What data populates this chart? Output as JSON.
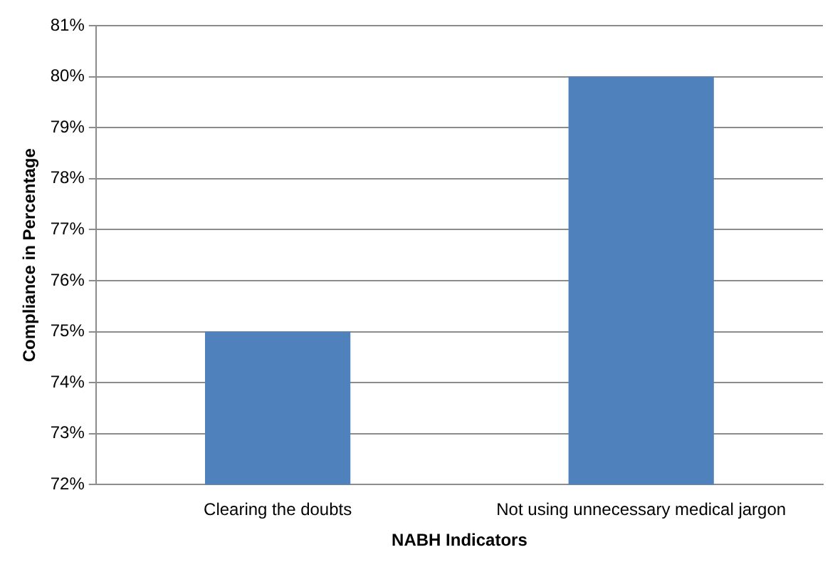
{
  "chart_data": {
    "type": "bar",
    "xlabel": "NABH Indicators",
    "ylabel": "Compliance in Percentage",
    "categories": [
      "Clearing the doubts",
      "Not using unnecessary medical jargon"
    ],
    "values": [
      75,
      80
    ],
    "color": "#4f81bd",
    "ylim": [
      72,
      81
    ],
    "yticks": [
      {
        "value": 72,
        "label": "72%"
      },
      {
        "value": 73,
        "label": "73%"
      },
      {
        "value": 74,
        "label": "74%"
      },
      {
        "value": 75,
        "label": "75%"
      },
      {
        "value": 76,
        "label": "76%"
      },
      {
        "value": 77,
        "label": "77%"
      },
      {
        "value": 78,
        "label": "78%"
      },
      {
        "value": 79,
        "label": "79%"
      },
      {
        "value": 80,
        "label": "80%"
      },
      {
        "value": 81,
        "label": "81%"
      }
    ],
    "grid": "y",
    "legend": false
  }
}
